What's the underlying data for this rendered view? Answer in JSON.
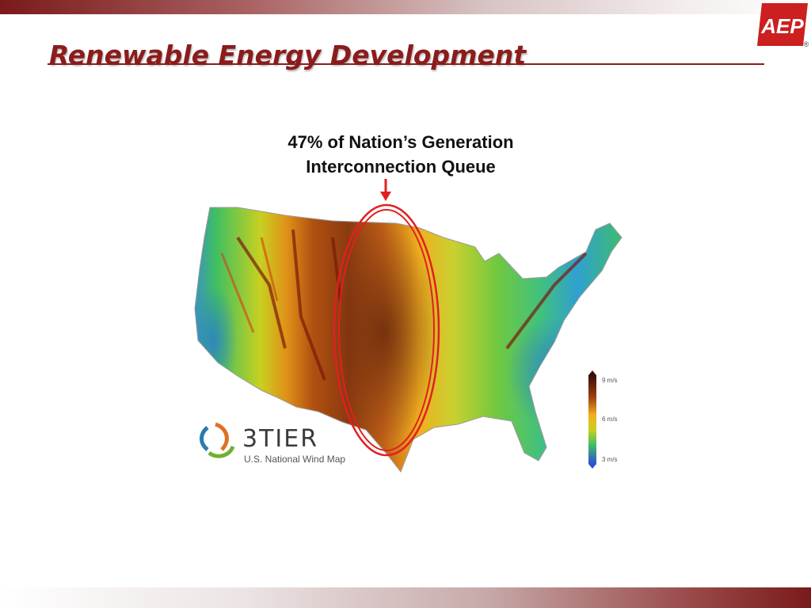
{
  "slide": {
    "title": "Renewable Energy Development",
    "callout": {
      "line1": "47% of Nation’s Generation",
      "line2": "Interconnection Queue"
    }
  },
  "logo": {
    "text": "AEP",
    "registered_mark": "®"
  },
  "map": {
    "brand_name": "3TIER",
    "subtitle": "U.S. National Wind Map",
    "legend": {
      "high": "9 m/s",
      "mid": "6 m/s",
      "low": "3 m/s"
    }
  },
  "colors": {
    "accent": "#8b1c1c",
    "highlight_ellipse": "#e02020",
    "wind_high": "#4a1a0c",
    "wind_mid": "#f0c020",
    "wind_low": "#3050d0"
  }
}
